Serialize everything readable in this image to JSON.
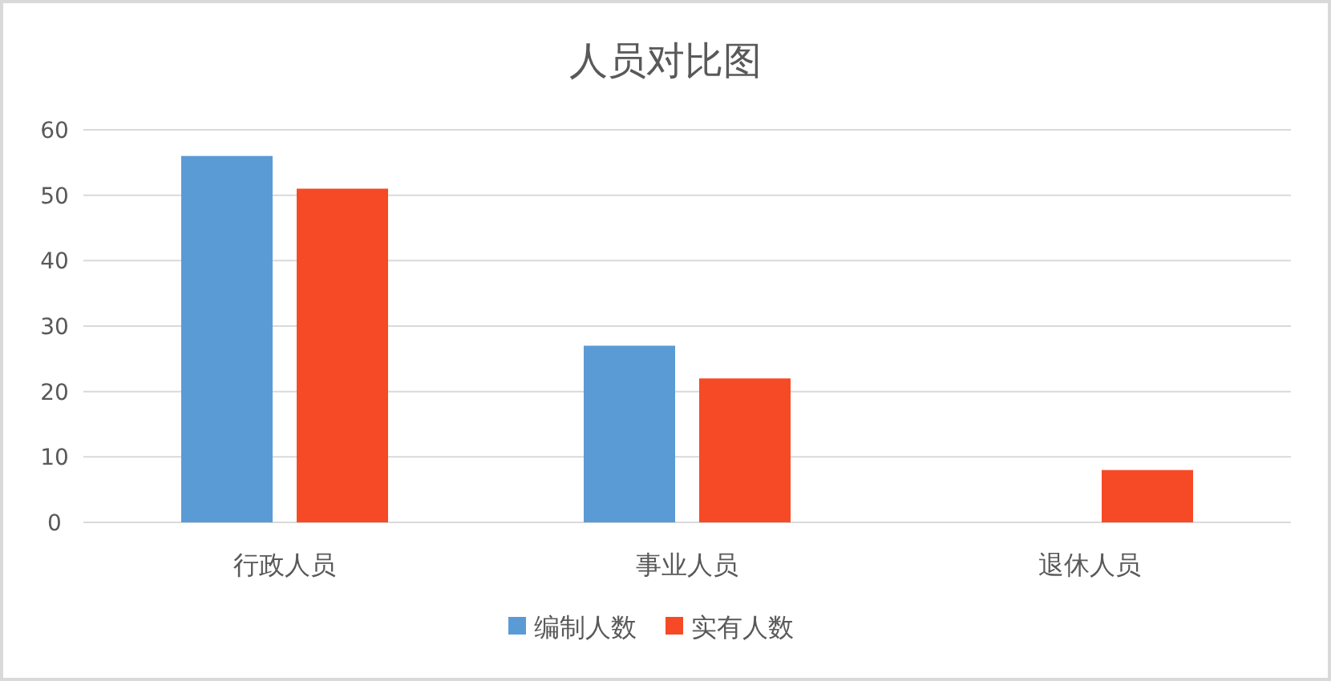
{
  "chart_data": {
    "type": "bar",
    "title": "人员对比图",
    "categories": [
      "行政人员",
      "事业人员",
      "退休人员"
    ],
    "series": [
      {
        "name": "编制人数",
        "color": "#5b9bd5",
        "values": [
          56,
          27,
          null
        ]
      },
      {
        "name": "实有人数",
        "color": "#f64a26",
        "values": [
          51,
          22,
          8
        ]
      }
    ],
    "ylim": [
      0,
      60
    ],
    "yticks": [
      0,
      10,
      20,
      30,
      40,
      50,
      60
    ],
    "grid": "y",
    "legend": "bottom"
  }
}
